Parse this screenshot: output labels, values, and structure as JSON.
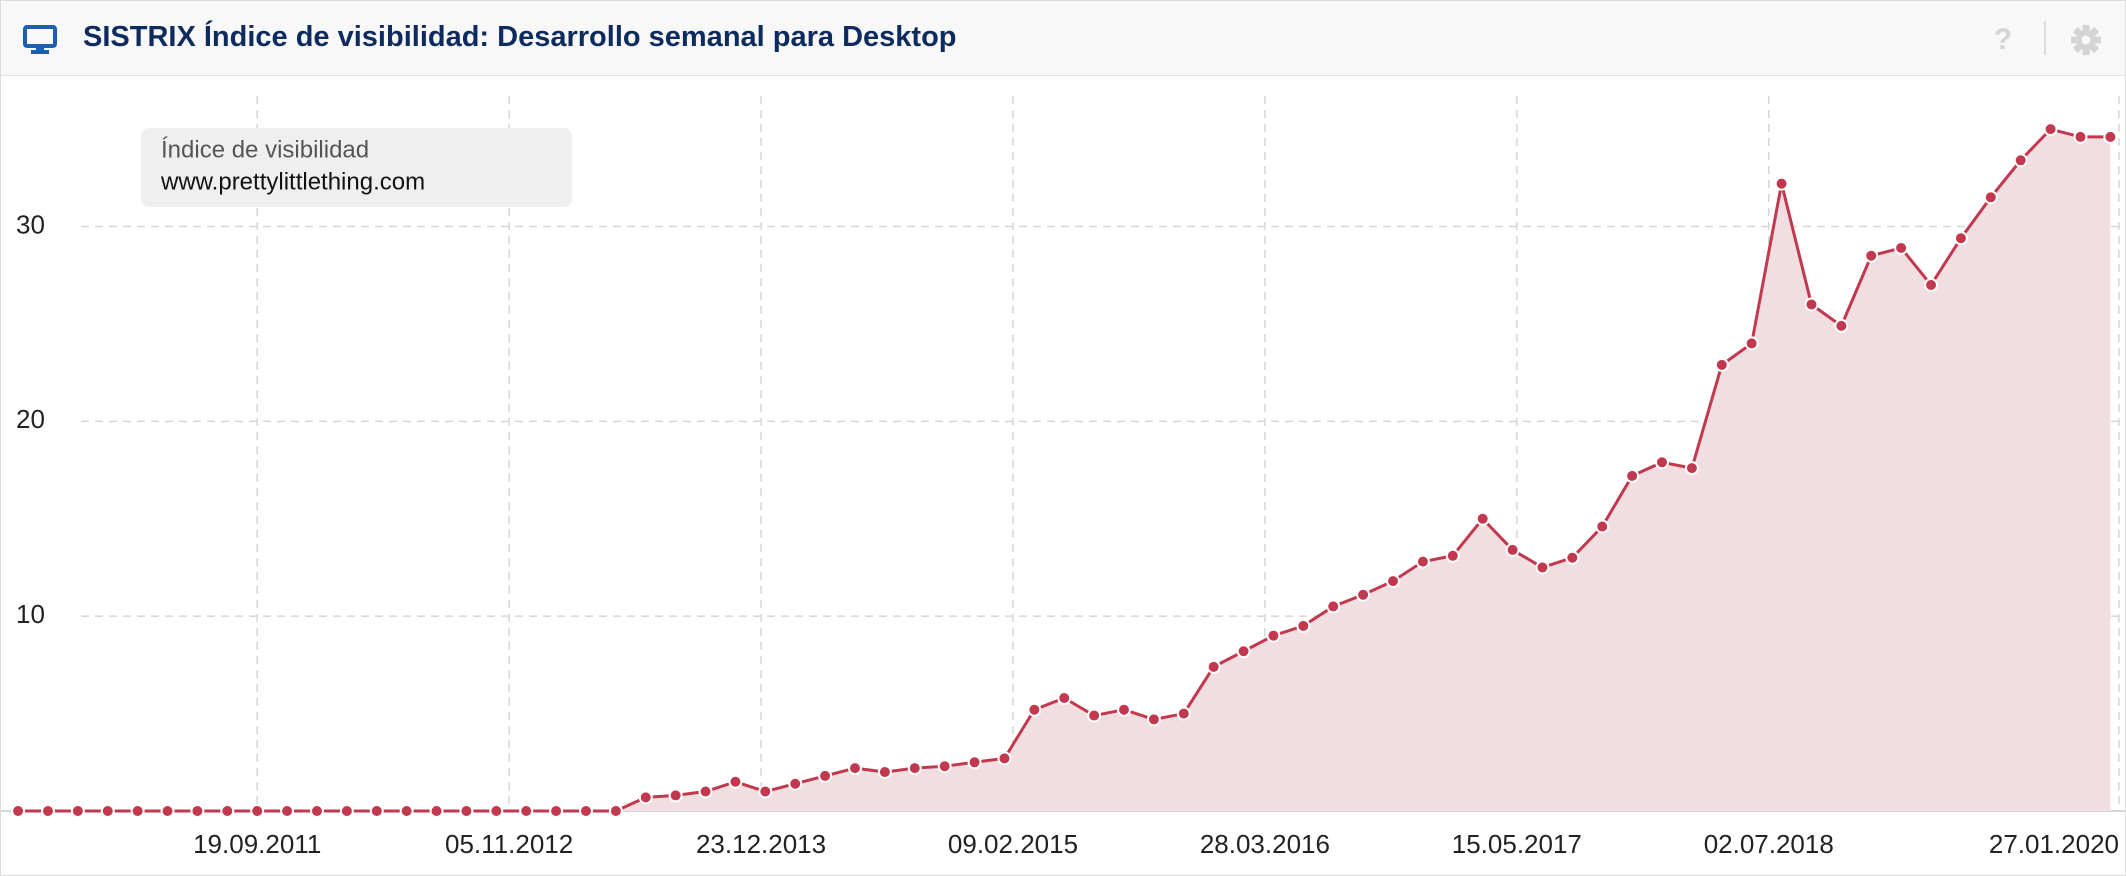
{
  "title": "SISTRIX Índice de visibilidad: Desarrollo semanal para Desktop",
  "chart_data": {
    "type": "area",
    "legend_title": "Índice de visibilidad",
    "x": [
      "23.08.2010",
      "11.10.2010",
      "29.11.2010",
      "17.01.2011",
      "07.03.2011",
      "25.04.2011",
      "13.06.2011",
      "01.08.2011",
      "19.09.2011",
      "07.11.2011",
      "26.12.2011",
      "13.02.2012",
      "02.04.2012",
      "21.05.2012",
      "09.07.2012",
      "27.08.2012",
      "15.10.2012",
      "03.12.2012",
      "21.01.2013",
      "11.03.2013",
      "29.04.2013",
      "17.06.2013",
      "05.08.2013",
      "23.09.2013",
      "11.11.2013",
      "30.12.2013",
      "17.02.2014",
      "07.04.2014",
      "26.05.2014",
      "14.07.2014",
      "01.09.2014",
      "20.10.2014",
      "08.12.2014",
      "26.01.2015",
      "16.03.2015",
      "04.05.2015",
      "22.06.2015",
      "10.08.2015",
      "28.09.2015",
      "16.11.2015",
      "04.01.2016",
      "22.02.2016",
      "11.04.2016",
      "30.05.2016",
      "18.07.2016",
      "05.09.2016",
      "24.10.2016",
      "12.12.2016",
      "30.01.2017",
      "20.03.2017",
      "08.05.2017",
      "26.06.2017",
      "14.08.2017",
      "02.10.2017",
      "20.11.2017",
      "08.01.2018",
      "26.02.2018",
      "16.04.2018",
      "04.06.2018",
      "23.07.2018",
      "10.09.2018",
      "29.10.2018",
      "17.12.2018",
      "04.02.2019",
      "25.03.2019",
      "13.05.2019",
      "01.07.2019",
      "19.08.2019",
      "07.10.2019",
      "25.11.2019",
      "13.01.2020"
    ],
    "series": [
      {
        "name": "www.prettylittlething.com",
        "color": "#c2384f",
        "fill": "#f1dee1",
        "values": [
          0,
          0,
          0,
          0,
          0,
          0,
          0,
          0,
          0,
          0,
          0,
          0,
          0,
          0,
          0,
          0,
          0,
          0,
          0,
          0,
          0,
          0.7,
          0.8,
          1.0,
          1.5,
          1.0,
          1.4,
          1.8,
          2.2,
          2.0,
          2.2,
          2.3,
          2.5,
          2.7,
          5.2,
          5.8,
          4.9,
          5.2,
          4.7,
          5.0,
          7.4,
          8.2,
          9.0,
          9.5,
          10.5,
          11.1,
          11.8,
          12.8,
          13.1,
          15.0,
          13.4,
          12.5,
          13.0,
          14.6,
          17.2,
          17.9,
          17.6,
          22.9,
          24.0,
          32.2,
          26.0,
          24.9,
          28.5,
          28.9,
          27.0,
          29.4,
          31.5,
          33.4,
          35.0,
          34.6,
          34.6
        ]
      }
    ],
    "xlim": [
      "26.07.2010",
      "06.02.2020"
    ],
    "xticks": [
      "19.09.2011",
      "05.11.2012",
      "23.12.2013",
      "09.02.2015",
      "28.03.2016",
      "15.05.2017",
      "02.07.2018",
      "27.01.2020"
    ],
    "ylim": [
      0,
      36.7
    ],
    "yticks": [
      10,
      20,
      30
    ],
    "grid": true
  }
}
